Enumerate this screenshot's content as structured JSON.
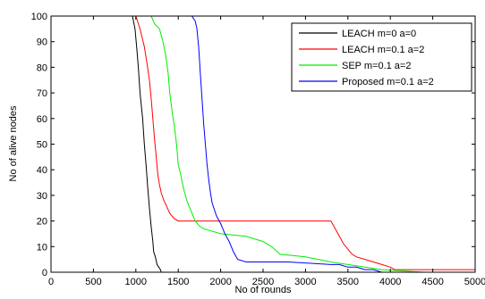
{
  "chart_data": {
    "type": "line",
    "xlabel": "No of rounds",
    "ylabel": "No of alive nodes",
    "xlim": [
      0,
      5000
    ],
    "ylim": [
      0,
      100
    ],
    "xticks": [
      0,
      500,
      1000,
      1500,
      2000,
      2500,
      3000,
      3500,
      4000,
      4500,
      5000
    ],
    "yticks": [
      0,
      10,
      20,
      30,
      40,
      50,
      60,
      70,
      80,
      90,
      100
    ],
    "grid": false,
    "legend_position": "top-right",
    "series": [
      {
        "name": "LEACH m=0 a=0",
        "color": "#000000",
        "x": [
          0,
          960,
          990,
          1010,
          1030,
          1050,
          1080,
          1100,
          1120,
          1140,
          1160,
          1180,
          1200,
          1210,
          1230,
          1250,
          1270,
          1290,
          1300,
          1310
        ],
        "y": [
          100,
          100,
          95,
          88,
          80,
          70,
          60,
          50,
          42,
          33,
          25,
          18,
          12,
          8,
          6,
          3,
          2,
          1,
          0,
          0
        ]
      },
      {
        "name": "LEACH m=0.1 a=2",
        "color": "#ff0000",
        "x": [
          0,
          1000,
          1050,
          1100,
          1130,
          1160,
          1180,
          1200,
          1220,
          1240,
          1260,
          1280,
          1300,
          1330,
          1360,
          1400,
          1450,
          1500,
          3300,
          3350,
          3400,
          3450,
          3500,
          3550,
          3600,
          3700,
          3800,
          3900,
          4000,
          4050,
          5000
        ],
        "y": [
          100,
          100,
          95,
          88,
          82,
          75,
          68,
          60,
          52,
          45,
          38,
          34,
          31,
          28,
          26,
          23,
          21,
          20,
          20,
          17,
          14,
          11,
          9,
          7,
          6,
          5,
          4,
          3,
          2,
          1,
          1
        ]
      },
      {
        "name": "SEP m=0.1 a=2",
        "color": "#00ee00",
        "x": [
          0,
          1180,
          1220,
          1280,
          1320,
          1350,
          1380,
          1400,
          1430,
          1450,
          1480,
          1500,
          1530,
          1560,
          1600,
          1650,
          1700,
          1750,
          1800,
          2000,
          2300,
          2500,
          2600,
          2700,
          3000,
          3300,
          3500,
          3700,
          3900,
          4400,
          5000
        ],
        "y": [
          100,
          100,
          97,
          95,
          90,
          85,
          78,
          70,
          62,
          58,
          50,
          42,
          38,
          33,
          28,
          24,
          20,
          18,
          17,
          15,
          14,
          12,
          10,
          7,
          6,
          4,
          3,
          2,
          1,
          0,
          0
        ]
      },
      {
        "name": "Proposed m=0.1 a=2",
        "color": "#0000ff",
        "x": [
          0,
          1660,
          1700,
          1720,
          1740,
          1760,
          1780,
          1800,
          1820,
          1840,
          1860,
          1880,
          1900,
          1950,
          2000,
          2050,
          2100,
          2150,
          2200,
          2300,
          2500,
          2800,
          3300,
          3400,
          3500,
          3600,
          3700,
          3800,
          3900,
          5000
        ],
        "y": [
          100,
          100,
          98,
          95,
          88,
          78,
          68,
          58,
          50,
          42,
          36,
          31,
          27,
          22,
          19,
          15,
          12,
          8,
          5,
          4,
          4,
          4,
          3,
          3,
          2,
          2,
          1,
          1,
          0,
          0
        ]
      }
    ]
  }
}
